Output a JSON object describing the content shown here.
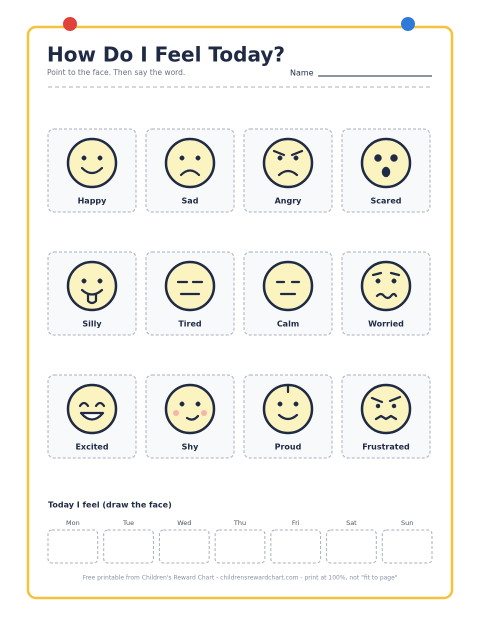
{
  "header": {
    "title": "How Do I Feel Today?",
    "subtitle": "Point to the face. Then say the word.",
    "name_label": "Name"
  },
  "feelings": [
    "Happy",
    "Sad",
    "Angry",
    "Scared",
    "Silly",
    "Tired",
    "Calm",
    "Worried",
    "Excited",
    "Shy",
    "Proud",
    "Frustrated"
  ],
  "today": {
    "title": "Today I feel (draw the face)",
    "days": [
      "Mon",
      "Tue",
      "Wed",
      "Thu",
      "Fri",
      "Sat",
      "Sun"
    ]
  },
  "footer": "Free printable from Children's Reward Chart - childrensrewardchart.com - print at 100%, not \"fit to page\""
}
